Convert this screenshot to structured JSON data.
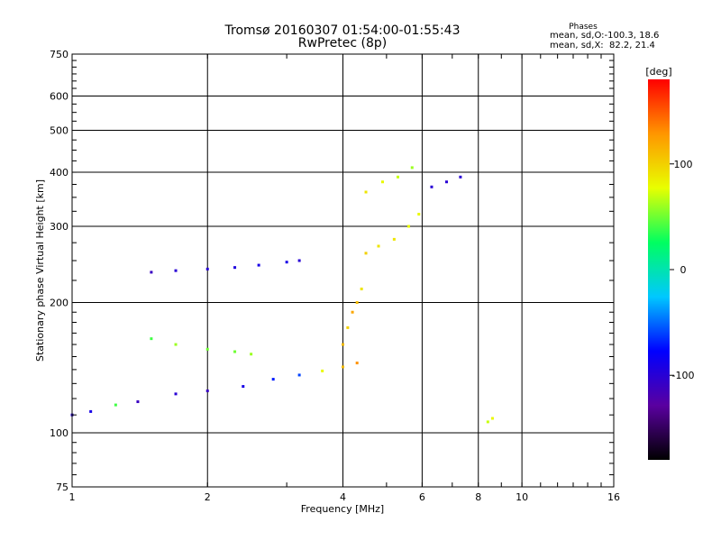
{
  "header": {
    "title_line1": "Tromsø 20160307 01:54:00-01:55:43",
    "title_line2": "RwPretec (8p)"
  },
  "stats": {
    "title": "Phases",
    "line1": "mean, sd,O:-100.3, 18.6",
    "line2": "mean, sd,X:  82.2, 21.4"
  },
  "colorbar": {
    "unit_label": "[deg]",
    "min": -180,
    "max": 180,
    "tick_labels": [
      "100",
      "0",
      "-100"
    ],
    "tick_values": [
      100,
      0,
      -100
    ],
    "gradient_stops": [
      "#000000",
      "#5a00a0",
      "#0000ff",
      "#00c8ff",
      "#00ff60",
      "#e8ff00",
      "#ff9600",
      "#ff0000"
    ]
  },
  "chart_data": {
    "type": "scatter",
    "title": "Tromsø 20160307 01:54:00-01:55:43",
    "subtitle": "RwPretec (8p)",
    "xlabel": "Frequency [MHz]",
    "ylabel": "Stationary phase Virtual Height [km]",
    "x_scale": "log",
    "y_scale": "log",
    "xlim": [
      1,
      16
    ],
    "ylim": [
      75,
      750
    ],
    "x_ticks": [
      1,
      2,
      4,
      6,
      8,
      10,
      16
    ],
    "x_tick_labels": [
      "1",
      "2",
      "4",
      "6",
      "8",
      "10",
      "16"
    ],
    "y_ticks": [
      75,
      100,
      200,
      300,
      400,
      500,
      600,
      750
    ],
    "y_tick_labels": [
      "75",
      "100",
      "200",
      "300",
      "400",
      "500",
      "600",
      "750"
    ],
    "grid": true,
    "color_variable": "phase [deg]",
    "traces": [
      {
        "name": "",
        "points": [
          [
            1.0,
            110,
            -100
          ],
          [
            1.1,
            112,
            -90
          ],
          [
            1.25,
            116,
            40
          ],
          [
            1.4,
            118,
            -110
          ],
          [
            1.7,
            123,
            -100
          ],
          [
            2.0,
            125,
            -110
          ],
          [
            2.4,
            128,
            -90
          ],
          [
            2.8,
            133,
            -70
          ],
          [
            3.2,
            136,
            -60
          ],
          [
            3.6,
            139,
            80
          ],
          [
            4.0,
            142,
            110
          ],
          [
            4.3,
            145,
            130
          ]
        ]
      },
      {
        "name": "",
        "points": [
          [
            1.5,
            235,
            -110
          ],
          [
            1.7,
            237,
            -100
          ],
          [
            2.0,
            239,
            -100
          ],
          [
            2.3,
            241,
            -95
          ],
          [
            2.6,
            244,
            -90
          ],
          [
            3.0,
            248,
            -90
          ],
          [
            3.2,
            250,
            -100
          ]
        ]
      },
      {
        "name": "",
        "points": [
          [
            1.5,
            165,
            40
          ],
          [
            1.7,
            160,
            60
          ],
          [
            2.0,
            156,
            50
          ],
          [
            2.3,
            154,
            50
          ],
          [
            2.5,
            152,
            60
          ]
        ]
      },
      {
        "name": "",
        "points": [
          [
            4.0,
            160,
            110
          ],
          [
            4.1,
            175,
            100
          ],
          [
            4.2,
            190,
            120
          ],
          [
            4.3,
            200,
            110
          ],
          [
            4.4,
            215,
            90
          ]
        ]
      },
      {
        "name": "",
        "points": [
          [
            4.5,
            260,
            100
          ],
          [
            4.8,
            270,
            90
          ],
          [
            5.2,
            280,
            90
          ],
          [
            5.6,
            300,
            80
          ],
          [
            5.9,
            320,
            80
          ]
        ]
      },
      {
        "name": "",
        "points": [
          [
            4.5,
            360,
            90
          ],
          [
            4.9,
            380,
            80
          ],
          [
            5.3,
            390,
            70
          ],
          [
            5.7,
            410,
            60
          ]
        ]
      },
      {
        "name": "",
        "points": [
          [
            6.3,
            370,
            -100
          ],
          [
            6.8,
            380,
            -100
          ],
          [
            7.3,
            390,
            -100
          ]
        ]
      },
      {
        "name": "",
        "points": [
          [
            8.4,
            106,
            70
          ],
          [
            8.6,
            108,
            80
          ]
        ]
      }
    ]
  }
}
